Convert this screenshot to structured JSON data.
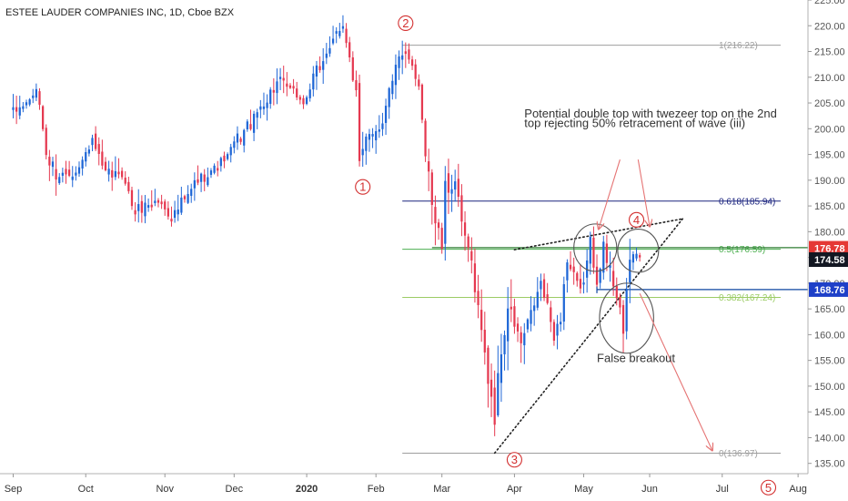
{
  "chart_data": {
    "type": "candlestick",
    "title": "ESTEE LAUDER COMPANIES INC, 1D, Cboe BZX",
    "ylim": [
      133,
      225
    ],
    "y_ticks": [
      135,
      140,
      145,
      150,
      155,
      160,
      165,
      170,
      175,
      180,
      185,
      190,
      195,
      200,
      205,
      210,
      215,
      220,
      225
    ],
    "x_ticks": [
      {
        "label": "Sep",
        "index": 0
      },
      {
        "label": "Oct",
        "index": 22
      },
      {
        "label": "Nov",
        "index": 46
      },
      {
        "label": "Dec",
        "index": 67
      },
      {
        "label": "2020",
        "index": 89,
        "bold": true
      },
      {
        "label": "Feb",
        "index": 110
      },
      {
        "label": "Mar",
        "index": 130
      },
      {
        "label": "Apr",
        "index": 152
      },
      {
        "label": "May",
        "index": 173
      },
      {
        "label": "Jun",
        "index": 193
      },
      {
        "label": "Jul",
        "index": 215
      },
      {
        "label": "Aug",
        "index": 238
      }
    ],
    "x_range": [
      -4,
      241
    ],
    "waypoints": [
      [
        0,
        203,
        1
      ],
      [
        4,
        205,
        0
      ],
      [
        7,
        207,
        0
      ],
      [
        11,
        193,
        2
      ],
      [
        14,
        191,
        1
      ],
      [
        19,
        192,
        0
      ],
      [
        24,
        197,
        1
      ],
      [
        28,
        191,
        1
      ],
      [
        33,
        191,
        0
      ],
      [
        37,
        184,
        1
      ],
      [
        40,
        185,
        1
      ],
      [
        44,
        186,
        0
      ],
      [
        48,
        183,
        1
      ],
      [
        52,
        186,
        1
      ],
      [
        56,
        190,
        1
      ],
      [
        60,
        192,
        0
      ],
      [
        64,
        194,
        0
      ],
      [
        68,
        198,
        1
      ],
      [
        72,
        201,
        1
      ],
      [
        76,
        205,
        1
      ],
      [
        80,
        209,
        1
      ],
      [
        84,
        208,
        0
      ],
      [
        88,
        205,
        0
      ],
      [
        92,
        211,
        1
      ],
      [
        96,
        216,
        1
      ],
      [
        100,
        219,
        1
      ],
      [
        101,
        217,
        0
      ],
      [
        104,
        207,
        2
      ],
      [
        105,
        193,
        2
      ],
      [
        108,
        199,
        1
      ],
      [
        112,
        201,
        1
      ],
      [
        114,
        209,
        2
      ],
      [
        116,
        212,
        1
      ],
      [
        118,
        215,
        1
      ],
      [
        120,
        213,
        0
      ],
      [
        123,
        208,
        0
      ],
      [
        125,
        196,
        2
      ],
      [
        128,
        182,
        2
      ],
      [
        130,
        177,
        1
      ],
      [
        131,
        188,
        2
      ],
      [
        134,
        190,
        1
      ],
      [
        136,
        181,
        1
      ],
      [
        139,
        174,
        1
      ],
      [
        141,
        165,
        2
      ],
      [
        144,
        152,
        3
      ],
      [
        146,
        144,
        3
      ],
      [
        148,
        157,
        3
      ],
      [
        150,
        165,
        3
      ],
      [
        152,
        162,
        1
      ],
      [
        154,
        158,
        2
      ],
      [
        156,
        162,
        1
      ],
      [
        158,
        166,
        1
      ],
      [
        160,
        170,
        1
      ],
      [
        162,
        165,
        1
      ],
      [
        164,
        160,
        1
      ],
      [
        166,
        163,
        1
      ],
      [
        167,
        170,
        1
      ],
      [
        168,
        174,
        1
      ],
      [
        170,
        171,
        1
      ],
      [
        172,
        168,
        1
      ],
      [
        174,
        174,
        1
      ],
      [
        175,
        178,
        1
      ],
      [
        176,
        174,
        1
      ],
      [
        177,
        171,
        1
      ],
      [
        178,
        174,
        1
      ],
      [
        179,
        177,
        1
      ],
      [
        180,
        174,
        1
      ],
      [
        181,
        172,
        1
      ],
      [
        182,
        170,
        1
      ],
      [
        183,
        168,
        1
      ],
      [
        184,
        166,
        1
      ],
      [
        185,
        160,
        2
      ],
      [
        186,
        167,
        2
      ],
      [
        187,
        174,
        2
      ],
      [
        188,
        176,
        1
      ],
      [
        190,
        175,
        0
      ]
    ],
    "fib_levels": [
      {
        "label": "1(216.22)",
        "value": 216.22,
        "x_start": 118,
        "color": "#9e9e9e"
      },
      {
        "label": "0.618(185.94)",
        "value": 185.94,
        "x_start": 118,
        "color": "#1a237e"
      },
      {
        "label": "0.5(176.59)",
        "value": 176.59,
        "x_start": 118,
        "color": "#4caf50"
      },
      {
        "label": "0.382(167.24)",
        "value": 167.24,
        "x_start": 118,
        "color": "#9ccc65"
      },
      {
        "label": "0(136.97)",
        "value": 136.97,
        "x_start": 118,
        "color": "#9e9e9e"
      }
    ],
    "resistance_line": {
      "value": 176.9,
      "x_start": 127,
      "color": "#2e7d32"
    },
    "breakout_line": {
      "value": 168.76,
      "x_start": 177,
      "color": "#0d47a1"
    },
    "price_tags": [
      {
        "label": "176.78",
        "value": 176.78,
        "color": "#e53935"
      },
      {
        "label": "174.58",
        "value": 174.58,
        "color": "#131722"
      },
      {
        "label": "168.76",
        "value": 168.76,
        "color": "#1e40c8"
      }
    ],
    "trendlines": [
      {
        "from": [
          146,
          137
        ],
        "to": [
          203,
          182.5
        ]
      },
      {
        "from": [
          152,
          176.5
        ],
        "to": [
          203,
          182.5
        ]
      }
    ],
    "wave_labels": [
      {
        "label": "1",
        "index": 106,
        "value": 188.7
      },
      {
        "label": "2",
        "index": 119,
        "value": 220.5
      },
      {
        "label": "3",
        "index": 152,
        "value": 135.7
      },
      {
        "label": "4",
        "index": 189,
        "value": 182.3
      },
      {
        "label": "5",
        "index": 229,
        "value": 130.3
      }
    ],
    "annotations": [
      {
        "text": "Potential double top with twezeer top on the 2nd",
        "index": 155,
        "value": 202.2
      },
      {
        "text": "top rejecting 50% retracement of wave (iii)",
        "index": 155,
        "value": 200.3
      },
      {
        "text": "False breakout",
        "index": 177,
        "value": 154.7
      }
    ],
    "arrows": [
      {
        "from": [
          184,
          194
        ],
        "to": [
          177.5,
          180.5
        ]
      },
      {
        "from": [
          189.5,
          194
        ],
        "to": [
          193,
          181
        ]
      },
      {
        "from": [
          190,
          168
        ],
        "to": [
          212,
          137.5
        ]
      }
    ],
    "ellipses": [
      {
        "cx": 176.5,
        "cy": 176.9,
        "rx": 6.5,
        "ry": 4.6
      },
      {
        "cx": 189.5,
        "cy": 176.3,
        "rx": 6.2,
        "ry": 4.2
      },
      {
        "cx": 186,
        "cy": 163.2,
        "rx": 8.2,
        "ry": 6.8
      }
    ]
  }
}
